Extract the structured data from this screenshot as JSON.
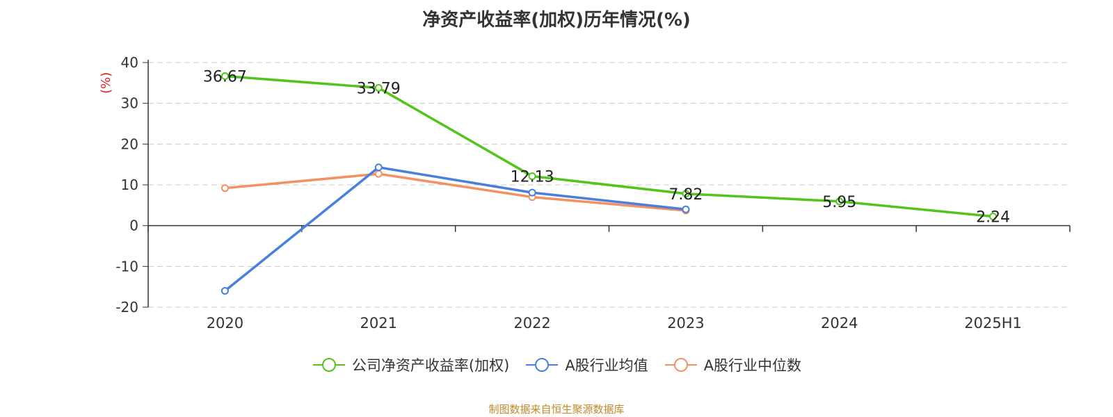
{
  "chart_data": {
    "type": "line",
    "title": "净资产收益率(加权)历年情况(%)",
    "ylabel": "(%)",
    "xlabel": "",
    "categories": [
      "2020",
      "2021",
      "2022",
      "2023",
      "2024",
      "2025H1"
    ],
    "ylim": [
      -20,
      40
    ],
    "yticks": [
      40,
      30,
      20,
      10,
      0,
      -10,
      -20
    ],
    "grid": true,
    "legend_position": "bottom",
    "series": [
      {
        "name": "公司净资产收益率(加权)",
        "color": "#52c41a",
        "values": [
          36.67,
          33.79,
          12.13,
          7.82,
          5.95,
          2.24
        ],
        "labels": [
          "36.67",
          "33.79",
          "12.13",
          "7.82",
          "5.95",
          "2.24"
        ]
      },
      {
        "name": "A股行业均值",
        "color": "#4a7fdb",
        "values": [
          -16.0,
          14.3,
          8.1,
          4.0,
          null,
          null
        ]
      },
      {
        "name": "A股行业中位数",
        "color": "#f59063",
        "values": [
          9.2,
          12.7,
          7.0,
          3.7,
          null,
          null
        ]
      }
    ]
  },
  "source_text": "制图数据来自恒生聚源数据库"
}
